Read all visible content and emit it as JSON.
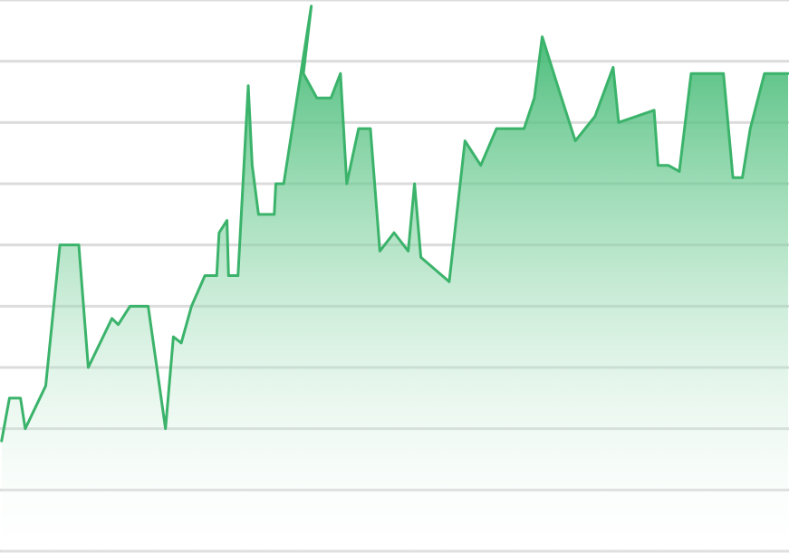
{
  "chart_data": {
    "type": "area",
    "title": "",
    "xlabel": "",
    "ylabel": "",
    "grid": true,
    "legend": "none",
    "ylim": [
      0,
      9
    ],
    "colors": {
      "line": "#3bb36b",
      "fill": "#52c07f",
      "grid": "#dcdcdc",
      "background": "#ffffff"
    },
    "series": [
      {
        "x": [
          0.2,
          1.2,
          2.6,
          3.2,
          5.8,
          7.6,
          10.0,
          11.2,
          14.2,
          15.0,
          16.5,
          18.8,
          21.0,
          22.0,
          23.0,
          24.3,
          26.0,
          27.5,
          27.8,
          28.8,
          29.0,
          30.2,
          31.5,
          32.0,
          32.8,
          34.8,
          35.0,
          36.0,
          39.5,
          38.5,
          40.2,
          42.0,
          43.2,
          44.0,
          45.5,
          47.0,
          48.2,
          50.0,
          51.8,
          52.6,
          53.4,
          57.0,
          59.0,
          61.0,
          63.0,
          66.5,
          67.8,
          68.8,
          71.0,
          73.0,
          75.5,
          77.8,
          78.5,
          83.0,
          83.5,
          84.8,
          86.2,
          87.7,
          91.8,
          93.0,
          94.2,
          95.2,
          97.0,
          100.0
        ],
        "y": [
          1.8,
          2.5,
          2.5,
          2.0,
          2.7,
          5.0,
          5.0,
          3.0,
          3.8,
          3.7,
          4.0,
          4.0,
          2.0,
          3.5,
          3.4,
          4.0,
          4.5,
          4.5,
          5.2,
          5.4,
          4.5,
          4.5,
          7.6,
          6.3,
          5.5,
          5.5,
          6.0,
          6.0,
          8.9,
          7.8,
          7.4,
          7.4,
          7.8,
          6.0,
          6.9,
          6.9,
          4.9,
          5.2,
          4.9,
          6.0,
          4.8,
          4.4,
          6.7,
          6.3,
          6.9,
          6.9,
          7.4,
          8.4,
          7.5,
          6.7,
          7.1,
          7.9,
          7.0,
          7.2,
          6.3,
          6.3,
          6.2,
          7.8,
          7.8,
          6.1,
          6.1,
          6.9,
          7.8,
          7.8
        ]
      }
    ]
  }
}
